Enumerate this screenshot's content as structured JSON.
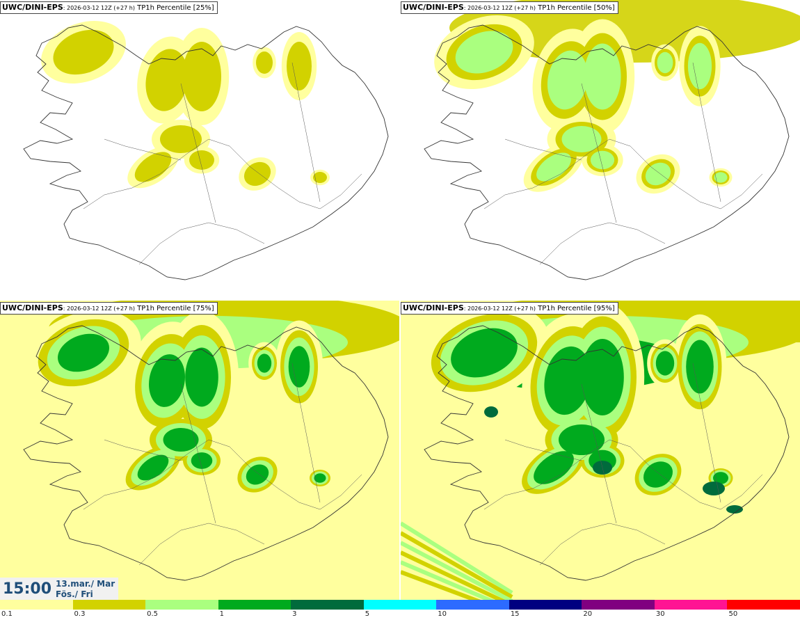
{
  "panels": [
    {
      "model": "UWC/DINI-EPS",
      "run": ": 2026-03-12 12Z (+27 h)",
      "field": " TP1h Percentile [25%]",
      "level": 1
    },
    {
      "model": "UWC/DINI-EPS",
      "run": ": 2026-03-12 12Z (+27 h)",
      "field": " TP1h Percentile [50%]",
      "level": 2
    },
    {
      "model": "UWC/DINI-EPS",
      "run": ": 2026-03-12 12Z (+27 h)",
      "field": " TP1h Percentile [75%]",
      "level": 3
    },
    {
      "model": "UWC/DINI-EPS",
      "run": ": 2026-03-12 12Z (+27 h)",
      "field": " TP1h Percentile [95%]",
      "level": 4
    }
  ],
  "valid_time": {
    "time": "15:00",
    "date_line1": "13.mar./ Mar",
    "date_line2": "Fös./ Fri"
  },
  "legend": {
    "labels": [
      "0.1",
      "0.3",
      "0.5",
      "1",
      "3",
      "5",
      "10",
      "15",
      "20",
      "30",
      "50"
    ],
    "colors": [
      "#ffff9e",
      "#d2d200",
      "#aaff7f",
      "#00aa1e",
      "#006b3c",
      "#00ffff",
      "#2d6bff",
      "#000080",
      "#800080",
      "#ff1493",
      "#ff0000"
    ]
  }
}
